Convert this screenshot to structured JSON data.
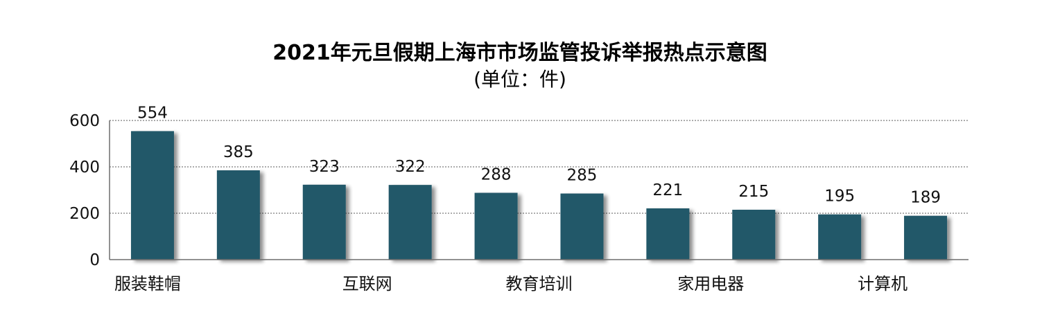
{
  "chart_data": {
    "type": "bar",
    "title": "2021年元旦假期上海市市场监管投诉举报热点示意图",
    "subtitle": "(单位：件)",
    "categories": [
      "服装鞋帽",
      "",
      "互联网",
      "",
      "教育培训",
      "",
      "家用电器",
      "",
      "计算机",
      ""
    ],
    "values": [
      554,
      385,
      323,
      322,
      288,
      285,
      221,
      215,
      195,
      189
    ],
    "data_labels": [
      "554",
      "385",
      "323",
      "322",
      "288",
      "285",
      "221",
      "215",
      "195",
      "189"
    ],
    "ylim": [
      0,
      600
    ],
    "yticks": [
      0,
      200,
      400,
      600
    ],
    "ytick_labels": [
      "0",
      "200",
      "400",
      "600"
    ],
    "xlabel": "",
    "ylabel": "",
    "grid": true,
    "legend": "none",
    "bar_color": "#245869"
  }
}
